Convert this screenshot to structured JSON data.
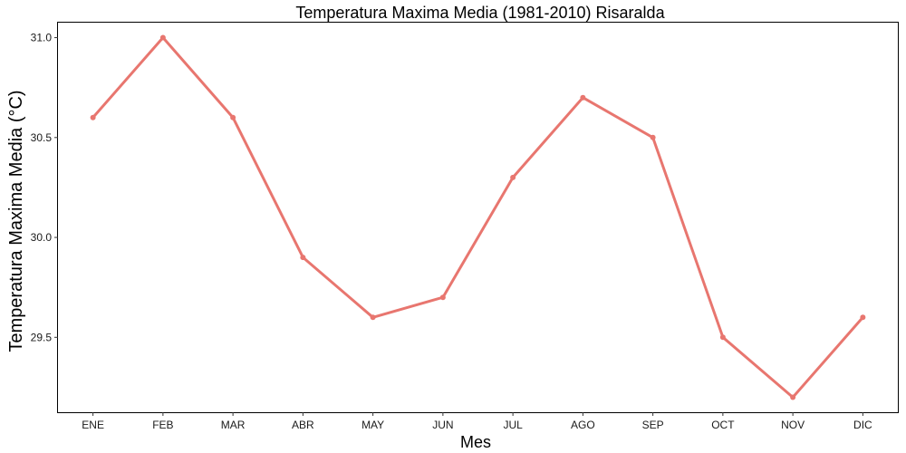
{
  "chart_data": {
    "type": "line",
    "title": "Temperatura Maxima Media (1981-2010)  Risaralda",
    "xlabel": "Mes",
    "ylabel": "Temperatura Maxima Media  (°C)",
    "categories": [
      "ENE",
      "FEB",
      "MAR",
      "ABR",
      "MAY",
      "JUN",
      "JUL",
      "AGO",
      "SEP",
      "OCT",
      "NOV",
      "DIC"
    ],
    "series": [
      {
        "values": [
          30.6,
          31.0,
          30.6,
          29.9,
          29.6,
          29.7,
          30.3,
          30.7,
          30.5,
          29.5,
          29.2,
          29.6
        ],
        "color": "#e8766f"
      }
    ],
    "ylim": [
      29.125,
      31.075
    ],
    "yticks": [
      29.5,
      30.0,
      30.5,
      31.0
    ],
    "ytick_labels": [
      "29.5",
      "30.0",
      "30.5",
      "31.0"
    ],
    "grid": false,
    "legend": "none"
  }
}
